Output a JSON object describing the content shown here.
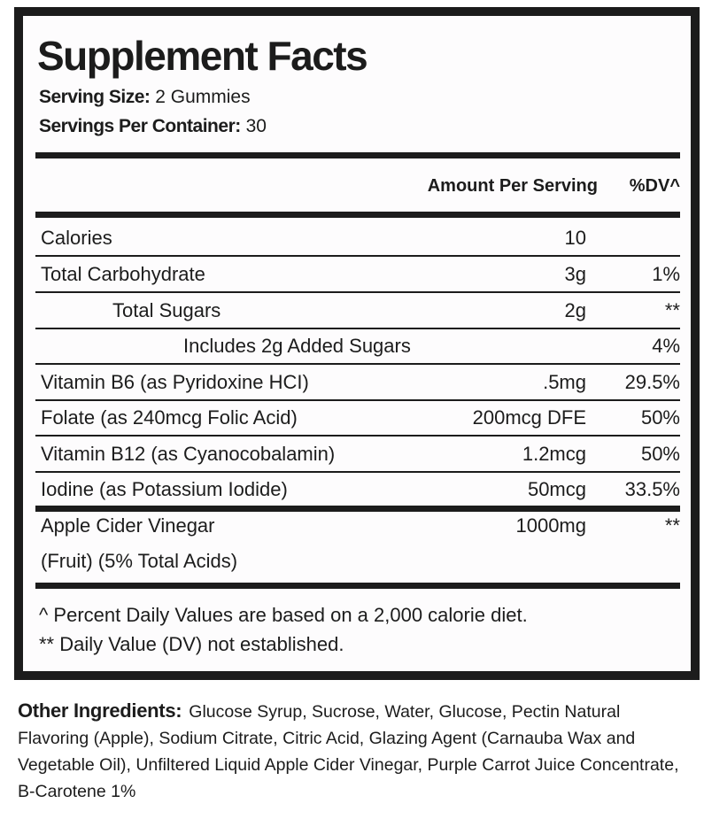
{
  "title": "Supplement Facts",
  "serving_size": {
    "label": "Serving Size:",
    "value": "2 Gummies"
  },
  "servings_per_container": {
    "label": "Servings Per Container:",
    "value": "30"
  },
  "columns": {
    "amount": "Amount Per Serving",
    "dv": "%DV^"
  },
  "rows": [
    {
      "name": "Calories",
      "amount": "10",
      "dv": ""
    },
    {
      "name": "Total Carbohydrate",
      "amount": "3g",
      "dv": "1%"
    },
    {
      "name": "Total Sugars",
      "amount": "2g",
      "dv": "**"
    },
    {
      "name": "Includes 2g Added Sugars",
      "amount": "",
      "dv": "4%"
    },
    {
      "name": "Vitamin B6 (as Pyridoxine HCI)",
      "amount": ".5mg",
      "dv": "29.5%"
    },
    {
      "name": "Folate (as 240mcg Folic Acid)",
      "amount": "200mcg DFE",
      "dv": "50%"
    },
    {
      "name": "Vitamin B12 (as Cyanocobalamin)",
      "amount": "1.2mcg",
      "dv": "50%"
    },
    {
      "name": "Iodine (as Potassium Iodide)",
      "amount": "50mcg",
      "dv": "33.5%"
    },
    {
      "name": "Apple Cider Vinegar",
      "name2": "(Fruit) (5% Total Acids)",
      "amount": "1000mg",
      "dv": "**"
    }
  ],
  "footnotes": [
    "^ Percent Daily Values are based on a 2,000 calorie diet.",
    "** Daily Value (DV) not established."
  ],
  "other_ingredients": {
    "label": "Other Ingredients:",
    "text": "Glucose Syrup, Sucrose, Water, Glucose, Pectin Natural Flavoring (Apple), Sodium Citrate, Citric Acid, Glazing Agent (Carnauba Wax and Vegetable Oil), Unfiltered Liquid Apple Cider Vinegar, Purple Carrot Juice Concentrate, B-Carotene 1%"
  }
}
